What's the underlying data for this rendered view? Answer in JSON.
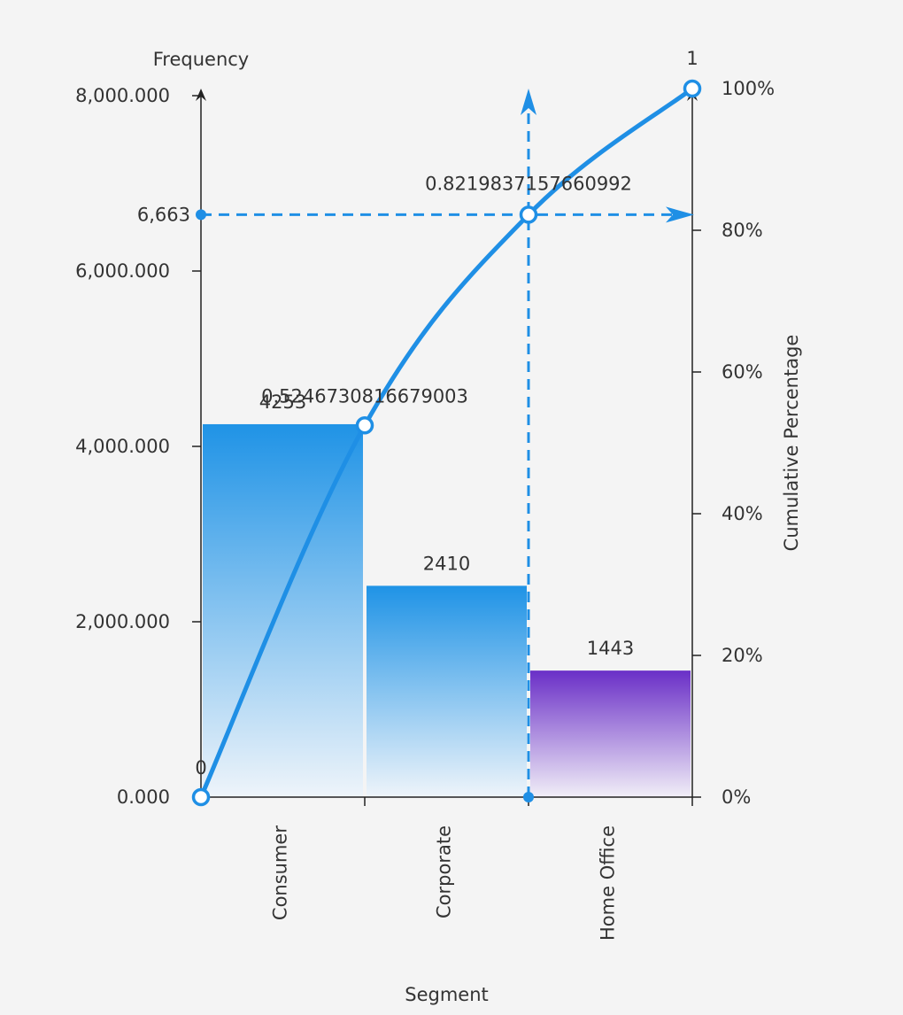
{
  "chart_data": {
    "type": "bar",
    "title": "",
    "xlabel": "Segment",
    "ylabel": "Frequency",
    "y2label": "Cumulative Percentage",
    "categories": [
      "Consumer",
      "Corporate",
      "Home Office"
    ],
    "values": [
      4253,
      2410,
      1443
    ],
    "value_labels": [
      "4253",
      "2410",
      "1443"
    ],
    "ylim": [
      0,
      8000
    ],
    "yticks": [
      0,
      2000,
      4000,
      6000,
      8000
    ],
    "ytick_labels": [
      "0.000",
      "2,000.000",
      "4,000.000",
      "6,000.000",
      "8,000.000"
    ],
    "y2lim": [
      0,
      1
    ],
    "y2ticks": [
      0,
      0.2,
      0.4,
      0.6,
      0.8,
      1
    ],
    "y2tick_labels": [
      "0%",
      "20%",
      "40%",
      "60%",
      "80%",
      "100%"
    ],
    "cumulative": {
      "name": "",
      "x_positions": [
        0,
        1,
        2,
        3
      ],
      "values": [
        0,
        0.5246730816679003,
        0.8219837157660992,
        1
      ],
      "point_labels": [
        "0",
        "0.5246730816679003",
        "0.8219837157660992",
        "1"
      ]
    },
    "marker": {
      "x_position": 2,
      "frequency_label": "6,663",
      "cumulative_value": 0.8219837157660992
    },
    "bar_colors": [
      {
        "top": "#1f93e6",
        "bottom": "#eef4fa"
      },
      {
        "top": "#1f93e6",
        "bottom": "#eef4fa"
      },
      {
        "top": "#6a2fc7",
        "bottom": "#f1eef7"
      }
    ],
    "line_color": "#1f8fe5",
    "grid": false
  }
}
